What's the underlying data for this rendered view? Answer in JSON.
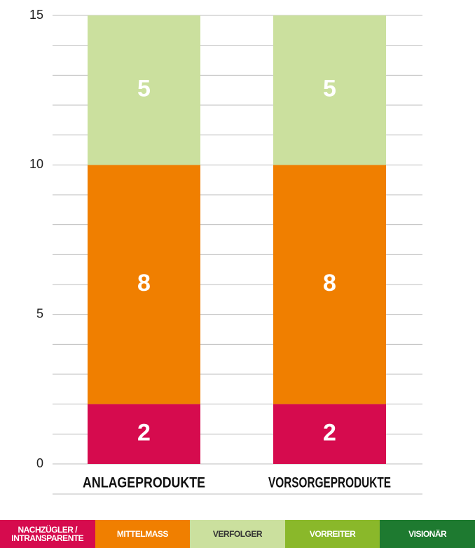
{
  "chart_data": {
    "type": "stacked_bar",
    "categories": [
      "ANLAGEPRODUKTE",
      "VORSORGEPRODUKTE"
    ],
    "series": [
      {
        "name": "NACHZÜGLER / INTRANSPARENTE",
        "color": "#d60b4e",
        "values": [
          2,
          2
        ]
      },
      {
        "name": "MITTELMASS",
        "color": "#f07f00",
        "values": [
          8,
          8
        ]
      },
      {
        "name": "VERFOLGER",
        "color": "#cbe09e",
        "values": [
          5,
          5
        ]
      },
      {
        "name": "VORREITER",
        "color": "#8ab82a",
        "values": [
          0,
          0
        ]
      },
      {
        "name": "VISIONÄR",
        "color": "#1e7a30",
        "values": [
          0,
          0
        ]
      }
    ],
    "ylim": [
      0,
      15
    ],
    "yticks": [
      0,
      5,
      10,
      15
    ],
    "minor_yticks": [
      1,
      2,
      3,
      4,
      6,
      7,
      8,
      9,
      11,
      12,
      13,
      14
    ],
    "grid": true,
    "legend": "bottom"
  }
}
